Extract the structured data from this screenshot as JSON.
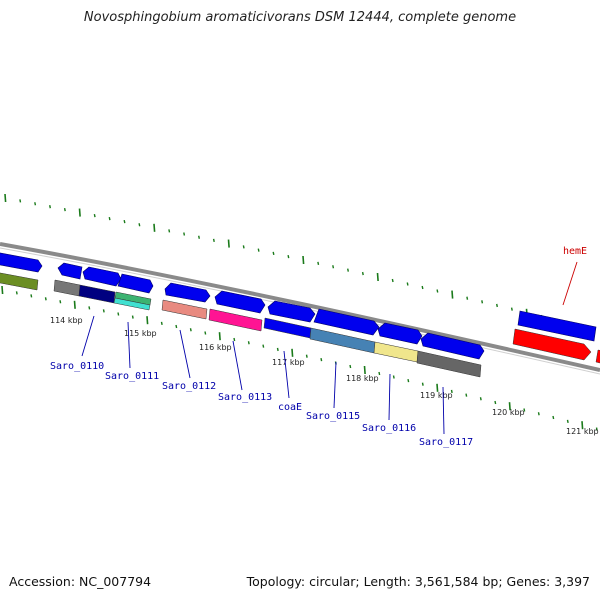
{
  "title": "Novosphingobium aromaticivorans DSM 12444, complete genome",
  "footer": {
    "accession": "Accession: NC_007794",
    "summary": "Topology: circular; Length: 3,561,584 bp; Genes: 3,397"
  },
  "colors": {
    "backbone": "#8a8a8a",
    "ticks": "#1a7a1a",
    "cds": "#0000ee",
    "label_blue": "#0000aa",
    "label_red": "#cc0000"
  },
  "scale": {
    "unit": "kbp",
    "labels": [
      {
        "kbp": 114,
        "text": "114 kbp"
      },
      {
        "kbp": 115,
        "text": "115 kbp"
      },
      {
        "kbp": 116,
        "text": "116 kbp"
      },
      {
        "kbp": 117,
        "text": "117 kbp"
      },
      {
        "kbp": 118,
        "text": "118 kbp"
      },
      {
        "kbp": 119,
        "text": "119 kbp"
      },
      {
        "kbp": 120,
        "text": "120 kbp"
      },
      {
        "kbp": 121,
        "text": "121 kbp"
      }
    ]
  },
  "genes": [
    {
      "label": "Saro_0110",
      "color": "label_blue"
    },
    {
      "label": "Saro_0111",
      "color": "label_blue"
    },
    {
      "label": "Saro_0112",
      "color": "label_blue"
    },
    {
      "label": "Saro_0113",
      "color": "label_blue"
    },
    {
      "label": "coaE",
      "color": "label_blue"
    },
    {
      "label": "Saro_0115",
      "color": "label_blue"
    },
    {
      "label": "Saro_0116",
      "color": "label_blue"
    },
    {
      "label": "Saro_0117",
      "color": "label_blue"
    },
    {
      "label": "hemE",
      "color": "label_red"
    }
  ]
}
